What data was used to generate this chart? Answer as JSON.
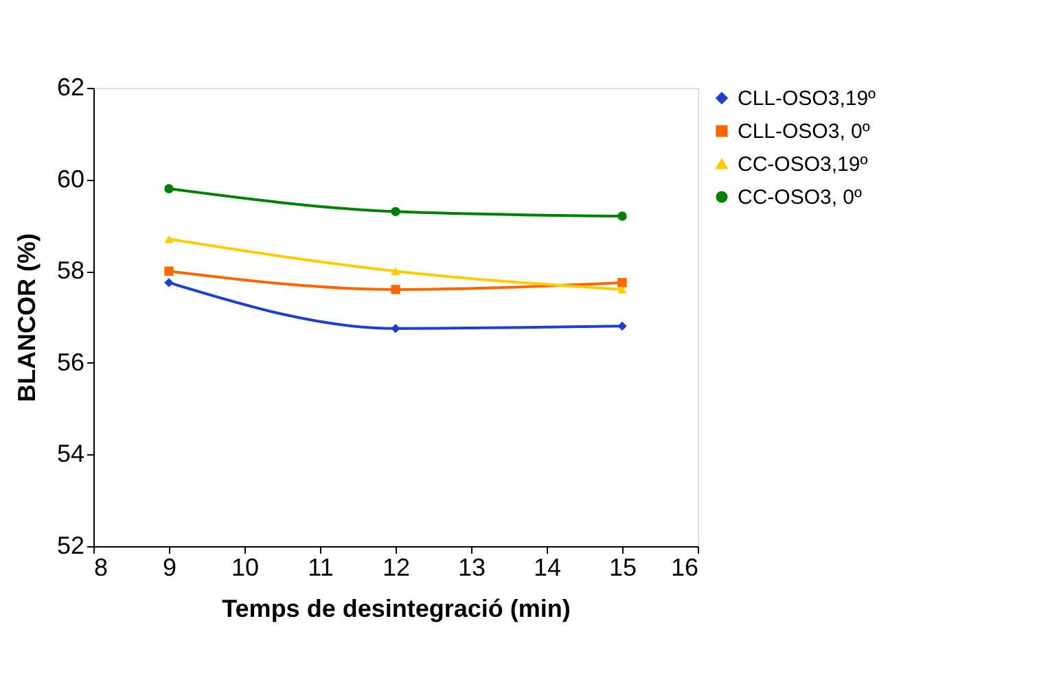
{
  "chart_data": {
    "type": "line",
    "xlabel": "Temps de desintegració (min)",
    "ylabel": "BLANCOR (%)",
    "x": [
      9,
      12,
      15
    ],
    "series": [
      {
        "name": "CLL-OSO3,19º",
        "color": "#1f3fd0",
        "marker": "diamond",
        "values": [
          57.75,
          56.75,
          56.8
        ]
      },
      {
        "name": "CLL-OSO3, 0º",
        "color": "#ff6600",
        "marker": "square",
        "values": [
          58.0,
          57.6,
          57.75
        ]
      },
      {
        "name": "CC-OSO3,19º",
        "color": "#ffcc00",
        "marker": "triangle",
        "values": [
          58.7,
          58.0,
          57.6
        ]
      },
      {
        "name": "CC-OSO3, 0º",
        "color": "#008000",
        "marker": "circle",
        "values": [
          59.8,
          59.3,
          59.2
        ]
      }
    ],
    "xlim": [
      8,
      16
    ],
    "xticks": [
      8,
      9,
      10,
      11,
      12,
      13,
      14,
      15,
      16
    ],
    "ylim": [
      52,
      62
    ],
    "yticks": [
      52,
      54,
      56,
      58,
      60,
      62
    ],
    "grid": false,
    "legend": "right",
    "line_style": "solid"
  }
}
